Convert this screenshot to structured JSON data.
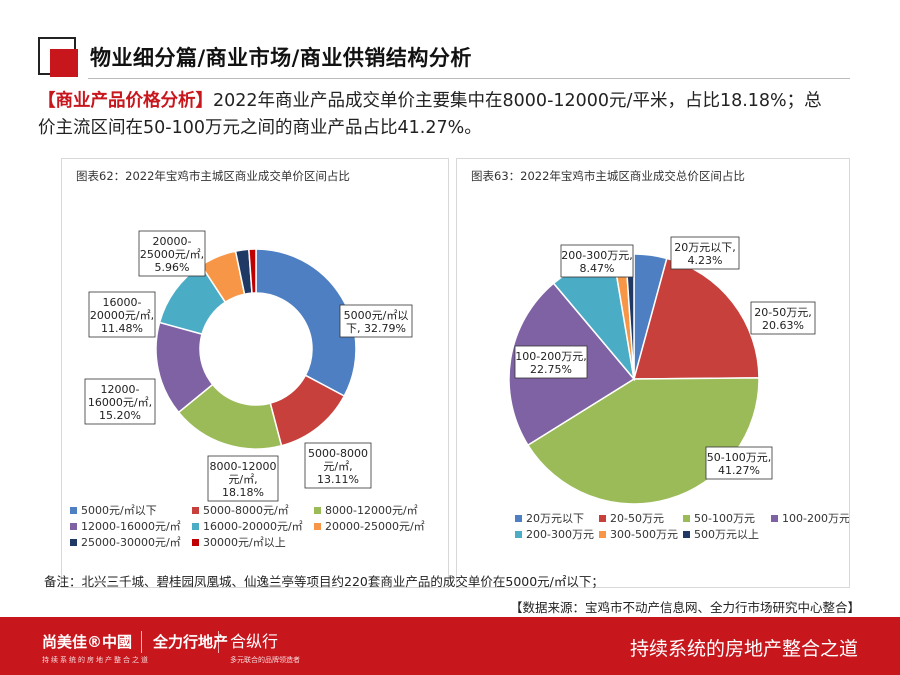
{
  "header": {
    "title": "物业细分篇/商业市场/商业供销结构分析"
  },
  "intro": {
    "tag": "【商业产品价格分析】",
    "text": "2022年商业产品成交单价主要集中在8000-12000元/平米，占比18.18%；总价主流区间在50-100万元之间的商业产品占比41.27%。"
  },
  "chart_data": [
    {
      "type": "pie",
      "title": "图表62：2022年宝鸡市主城区商业成交单价区间占比",
      "categories": [
        "5000元/㎡以下",
        "5000-8000元/㎡",
        "8000-12000元/㎡",
        "12000-16000元/㎡",
        "16000-20000元/㎡",
        "20000-25000元/㎡",
        "25000-30000元/㎡",
        "30000元/㎡以上"
      ],
      "values": [
        32.79,
        13.11,
        18.18,
        15.2,
        11.48,
        5.96,
        2.14,
        1.14
      ],
      "data_labels": [
        [
          "5000元/㎡以",
          "下, 32.79%"
        ],
        [
          "5000-8000",
          "元/㎡,",
          "13.11%"
        ],
        [
          "8000-12000",
          "元/㎡,",
          "18.18%"
        ],
        [
          "12000-",
          "16000元/㎡,",
          "15.20%"
        ],
        [
          "16000-",
          "20000元/㎡,",
          "11.48%"
        ],
        [
          "20000-",
          "25000元/㎡,",
          "5.96%"
        ],
        [],
        []
      ],
      "colors": [
        "#4e7fc3",
        "#c8403b",
        "#9bbb59",
        "#7f62a3",
        "#4bacc6",
        "#f79646",
        "#1f3864",
        "#c00000"
      ],
      "legend_position": "bottom"
    },
    {
      "type": "pie",
      "title": "图表63：2022年宝鸡市主城区商业成交总价区间占比",
      "categories": [
        "20万元以下",
        "20-50万元",
        "50-100万元",
        "100-200万元",
        "200-300万元",
        "300-500万元",
        "500万元以上"
      ],
      "values": [
        4.23,
        20.63,
        41.27,
        22.75,
        8.47,
        1.59,
        1.06
      ],
      "data_labels": [
        [
          "20万元以下,",
          "4.23%"
        ],
        [
          "20-50万元,",
          "20.63%"
        ],
        [
          "50-100万元,",
          "41.27%"
        ],
        [
          "100-200万元,",
          "22.75%"
        ],
        [
          "200-300万元,",
          "8.47%"
        ],
        [],
        []
      ],
      "colors": [
        "#4e7fc3",
        "#c8403b",
        "#9bbb59",
        "#7f62a3",
        "#4bacc6",
        "#f79646",
        "#1f3864"
      ],
      "legend_position": "bottom"
    }
  ],
  "note": "备注：北兴三千城、碧桂园凤凰城、仙逸兰亭等项目约220套商业产品的成交单价在5000元/㎡以下；",
  "source": "【数据来源：宝鸡市不动产信息网、全力行市场研究中心整合】",
  "footer": {
    "brand1": "尚美佳®中國",
    "brand2": "全力行地产",
    "brand3": "合纵行",
    "sub1": "持续系统的房地产整合之道",
    "sub2": "多元联合的品牌领造者",
    "slogan": "持续系统的房地产整合之道"
  }
}
